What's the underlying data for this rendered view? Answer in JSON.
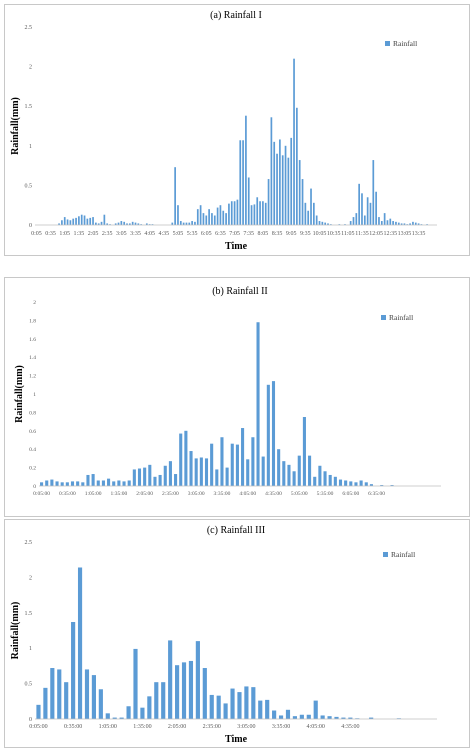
{
  "chart_data": [
    {
      "type": "bar",
      "title": "(a) Rainfall I",
      "xlabel": "Time",
      "ylabel": "Rainfall(mm)",
      "ylim": [
        0,
        2.5
      ],
      "yticks": [
        "0",
        "0.5",
        "1",
        "1.5",
        "2",
        "2.5"
      ],
      "legend": "top-right",
      "grid": false,
      "color": "#5b9bd5",
      "x_tick_labels": [
        "0:05",
        "0:35",
        "1:05",
        "1:35",
        "2:05",
        "2:35",
        "3:05",
        "3:35",
        "4:05",
        "4:35",
        "5:05",
        "5:35",
        "6:05",
        "6:35",
        "7:05",
        "7:35",
        "8:05",
        "8:35",
        "9:05",
        "9:35",
        "10:05",
        "10:35",
        "11:05",
        "11:35",
        "12:05",
        "12:35",
        "13:05",
        "13:35"
      ],
      "series": [
        {
          "name": "Rainfall",
          "values": [
            0,
            0,
            0,
            0,
            0,
            0,
            0,
            0,
            0.02,
            0.06,
            0.1,
            0.07,
            0.06,
            0.08,
            0.09,
            0.11,
            0.13,
            0.12,
            0.08,
            0.09,
            0.1,
            0.03,
            0.02,
            0.04,
            0.13,
            0.02,
            0.01,
            0,
            0.02,
            0.03,
            0.05,
            0.04,
            0.02,
            0.02,
            0.04,
            0.03,
            0.02,
            0.01,
            0,
            0.02,
            0.01,
            0.01,
            0,
            0,
            0,
            0,
            0,
            0,
            0.03,
            0.73,
            0.25,
            0.05,
            0.03,
            0.03,
            0.03,
            0.05,
            0.04,
            0.2,
            0.25,
            0.15,
            0.12,
            0.2,
            0.15,
            0.12,
            0.22,
            0.25,
            0.18,
            0.15,
            0.27,
            0.3,
            0.3,
            0.32,
            1.07,
            1.07,
            1.38,
            0.6,
            0.25,
            0.26,
            0.35,
            0.3,
            0.3,
            0.28,
            0.58,
            1.36,
            1.05,
            0.9,
            1.08,
            0.88,
            1,
            0.85,
            1.1,
            2.1,
            1.48,
            0.82,
            0.58,
            0.28,
            0.18,
            0.46,
            0.28,
            0.12,
            0.05,
            0.04,
            0.03,
            0.02,
            0.01,
            0,
            0,
            0.01,
            0,
            0.01,
            0,
            0.05,
            0.1,
            0.15,
            0.52,
            0.4,
            0.12,
            0.35,
            0.28,
            0.82,
            0.42,
            0.1,
            0.05,
            0.15,
            0.06,
            0.08,
            0.05,
            0.04,
            0.03,
            0.02,
            0.02,
            0.01,
            0.02,
            0.04,
            0.03,
            0.02,
            0.01,
            0,
            0.01,
            0,
            0,
            0
          ]
        }
      ]
    },
    {
      "type": "bar",
      "title": "(b) Rainfall II",
      "xlabel": "",
      "ylabel": "Rainfall(mm)",
      "ylim": [
        0,
        2
      ],
      "yticks": [
        "0",
        "0.2",
        "0.4",
        "0.6",
        "0.8",
        "1",
        "1.2",
        "1.4",
        "1.6",
        "1.8",
        "2"
      ],
      "legend": "top-right",
      "grid": false,
      "color": "#5b9bd5",
      "x_tick_labels": [
        "0:05:00",
        "0:35:00",
        "1:05:00",
        "1:35:00",
        "2:05:00",
        "2:35:00",
        "3:05:00",
        "3:35:00",
        "4:05:00",
        "4:35:00",
        "5:05:00",
        "5:35:00",
        "6:05:00",
        "6:35:00"
      ],
      "series": [
        {
          "name": "Rainfall",
          "values": [
            0.04,
            0.06,
            0.07,
            0.05,
            0.04,
            0.04,
            0.05,
            0.05,
            0.04,
            0.12,
            0.13,
            0.06,
            0.06,
            0.08,
            0.05,
            0.06,
            0.05,
            0.06,
            0.18,
            0.19,
            0.2,
            0.23,
            0.1,
            0.12,
            0.22,
            0.27,
            0.13,
            0.57,
            0.6,
            0.38,
            0.3,
            0.31,
            0.3,
            0.46,
            0.18,
            0.53,
            0.2,
            0.46,
            0.45,
            0.63,
            0.29,
            0.53,
            1.78,
            0.32,
            1.1,
            1.14,
            0.4,
            0.27,
            0.23,
            0.16,
            0.33,
            0.75,
            0.33,
            0.1,
            0.22,
            0.16,
            0.12,
            0.1,
            0.07,
            0.06,
            0.05,
            0.04,
            0.06,
            0.04,
            0.02,
            0,
            0.01,
            0,
            0.01,
            0,
            0,
            0,
            0,
            0,
            0,
            0,
            0,
            0
          ]
        }
      ]
    },
    {
      "type": "bar",
      "title": "(c) Rainfall III",
      "xlabel": "Time",
      "ylabel": "Rainfall(mm)",
      "ylim": [
        0,
        2.5
      ],
      "yticks": [
        "0",
        "0.5",
        "1",
        "1.5",
        "2",
        "2.5"
      ],
      "legend": "top-right",
      "grid": false,
      "color": "#5b9bd5",
      "x_tick_labels": [
        "0:05:00",
        "0:35:00",
        "1:05:00",
        "1:35:00",
        "2:05:00",
        "2:35:00",
        "3:05:00",
        "3:35:00",
        "4:05:00",
        "4:35:00"
      ],
      "series": [
        {
          "name": "Rainfall",
          "values": [
            0.2,
            0.44,
            0.72,
            0.7,
            0.52,
            1.37,
            2.14,
            0.7,
            0.62,
            0.42,
            0.08,
            0.02,
            0.02,
            0.18,
            0.99,
            0.16,
            0.32,
            0.52,
            0.52,
            1.11,
            0.76,
            0.8,
            0.82,
            1.1,
            0.72,
            0.34,
            0.33,
            0.22,
            0.43,
            0.38,
            0.46,
            0.45,
            0.26,
            0.27,
            0.12,
            0.05,
            0.13,
            0.04,
            0.06,
            0.06,
            0.26,
            0.05,
            0.04,
            0.03,
            0.02,
            0.02,
            0.01,
            0,
            0.02,
            0,
            0,
            0,
            0.01,
            0,
            0,
            0,
            0,
            0
          ]
        }
      ]
    }
  ]
}
